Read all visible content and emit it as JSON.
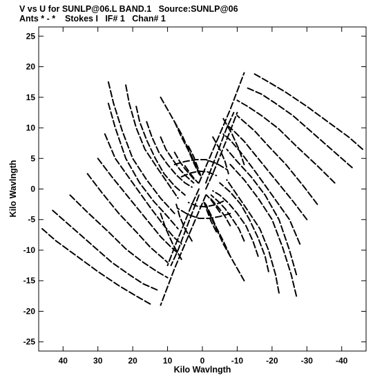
{
  "header": {
    "line1": "V vs U for SUNLP@06.L BAND.1   Source:SUNLP@06",
    "line2": "Ants * - *    Stokes I   IF# 1   Chan# 1"
  },
  "chart_data": {
    "type": "scatter",
    "title": "V vs U for SUNLP@06.L BAND.1   Source:SUNLP@06",
    "subtitle": "Ants * - *    Stokes I   IF# 1   Chan# 1",
    "xlabel": "Kilo Wavlngth",
    "ylabel": "Kilo Wavlngth",
    "xlim": [
      47,
      -47
    ],
    "ylim": [
      -26.5,
      26.5
    ],
    "x_reversed": true,
    "x_ticks": [
      40,
      30,
      20,
      10,
      0,
      -10,
      -20,
      -30,
      -40
    ],
    "x_tick_labels": [
      "40",
      "30",
      "20",
      "10",
      "0",
      "-10",
      "-20",
      "-30",
      "-40"
    ],
    "y_ticks": [
      25,
      20,
      15,
      10,
      5,
      0,
      -5,
      -10,
      -15,
      -20,
      -25
    ],
    "y_tick_labels": [
      "25",
      "20",
      "15",
      "10",
      "5",
      "0",
      "-5",
      "-10",
      "-15",
      "-20",
      "-25"
    ],
    "grid": false,
    "legend": "none",
    "mark_color": "#000000",
    "description": "uv-coverage tracks; each track has a point-symmetric mirror image",
    "tracks": [
      {
        "points": [
          [
            46,
            -6.5
          ],
          [
            42,
            -8.5
          ],
          [
            36,
            -11
          ],
          [
            30,
            -13.5
          ],
          [
            24,
            -15.8
          ],
          [
            19,
            -17.5
          ],
          [
            15,
            -18.8
          ]
        ]
      },
      {
        "points": [
          [
            43,
            -3.5
          ],
          [
            38,
            -6
          ],
          [
            32,
            -9
          ],
          [
            26,
            -12
          ],
          [
            21,
            -14
          ],
          [
            17,
            -15.5
          ],
          [
            13,
            -16.5
          ]
        ]
      },
      {
        "points": [
          [
            38,
            -1
          ],
          [
            33,
            -3.8
          ],
          [
            27,
            -7
          ],
          [
            22,
            -9.8
          ],
          [
            17,
            -12
          ],
          [
            13,
            -13.5
          ],
          [
            10,
            -14.5
          ]
        ]
      },
      {
        "points": [
          [
            33,
            2.5
          ],
          [
            29,
            -0.5
          ],
          [
            24,
            -4
          ],
          [
            19,
            -7
          ],
          [
            15,
            -9.5
          ],
          [
            12,
            -11
          ],
          [
            10,
            -12
          ]
        ]
      },
      {
        "points": [
          [
            30,
            5
          ],
          [
            26,
            2
          ],
          [
            21,
            -1.5
          ],
          [
            16,
            -5
          ],
          [
            12,
            -7.8
          ],
          [
            9,
            -9.5
          ],
          [
            7,
            -10.5
          ]
        ]
      },
      {
        "points": [
          [
            28,
            9
          ],
          [
            25,
            5
          ],
          [
            20,
            1
          ],
          [
            15,
            -3
          ],
          [
            11,
            -6
          ],
          [
            8,
            -8
          ],
          [
            6,
            -9
          ]
        ]
      },
      {
        "points": [
          [
            27,
            14
          ],
          [
            25,
            10
          ],
          [
            22,
            5
          ],
          [
            18,
            1
          ],
          [
            14,
            -2
          ],
          [
            10,
            -4.5
          ],
          [
            7,
            -6.5
          ]
        ]
      },
      {
        "points": [
          [
            27,
            17.5
          ],
          [
            25.5,
            14
          ],
          [
            23,
            9.5
          ],
          [
            20,
            5
          ],
          [
            16,
            1.5
          ],
          [
            12,
            -1.5
          ],
          [
            8,
            -4
          ]
        ]
      },
      {
        "points": [
          [
            22,
            17
          ],
          [
            21,
            14
          ],
          [
            19,
            10
          ],
          [
            16.5,
            6.5
          ],
          [
            13,
            3.5
          ],
          [
            10,
            1
          ],
          [
            7,
            -1.5
          ]
        ]
      },
      {
        "points": [
          [
            19,
            13.5
          ],
          [
            18,
            11
          ],
          [
            16,
            8
          ],
          [
            13.5,
            5
          ],
          [
            11,
            2.5
          ],
          [
            8,
            0.5
          ],
          [
            5,
            -1
          ]
        ]
      },
      {
        "points": [
          [
            16,
            11
          ],
          [
            14.5,
            8.5
          ],
          [
            12.5,
            6
          ],
          [
            10,
            4
          ],
          [
            7.5,
            2.3
          ],
          [
            5,
            1
          ],
          [
            3,
            0.3
          ]
        ]
      },
      {
        "points": [
          [
            12,
            8.5
          ],
          [
            10.5,
            6.5
          ],
          [
            8.5,
            4.8
          ],
          [
            6.5,
            3.2
          ],
          [
            4.5,
            2
          ],
          [
            2.5,
            1
          ]
        ]
      },
      {
        "points": [
          [
            8,
            6
          ],
          [
            6.5,
            4.5
          ],
          [
            5,
            3.3
          ],
          [
            3.5,
            2.3
          ],
          [
            2,
            1.3
          ]
        ]
      },
      {
        "points": [
          [
            5,
            3.8
          ],
          [
            3.8,
            2.8
          ],
          [
            2.5,
            1.8
          ],
          [
            1.2,
            1
          ]
        ]
      },
      {
        "points": [
          [
            12,
            15
          ],
          [
            9,
            12
          ],
          [
            6,
            9
          ],
          [
            4,
            6.5
          ],
          [
            2,
            4
          ],
          [
            0.5,
            2
          ]
        ]
      },
      {
        "points": [
          [
            8,
            11
          ],
          [
            6,
            8.5
          ],
          [
            4,
            6.3
          ],
          [
            2.5,
            4.3
          ],
          [
            1,
            2.5
          ]
        ]
      },
      {
        "points": [
          [
            4,
            7
          ],
          [
            2.5,
            5.3
          ],
          [
            1.5,
            3.8
          ],
          [
            0.5,
            2.2
          ]
        ]
      },
      {
        "points": [
          [
            -3,
            8.5
          ],
          [
            -5,
            6.5
          ],
          [
            -6.5,
            4.5
          ],
          [
            -7.5,
            2.5
          ]
        ]
      },
      {
        "points": [
          [
            -6,
            11.5
          ],
          [
            -8.5,
            9
          ],
          [
            -10.5,
            6.5
          ],
          [
            -12,
            4
          ]
        ]
      },
      {
        "points": [
          [
            1,
            1
          ],
          [
            -2,
            5
          ],
          [
            -5,
            9
          ],
          [
            -8,
            13
          ],
          [
            -10,
            16
          ],
          [
            -12,
            19
          ]
        ]
      },
      {
        "points": [
          [
            1,
            -1
          ],
          [
            3,
            -4
          ],
          [
            5,
            -7
          ],
          [
            7,
            -10
          ],
          [
            9,
            -12.5
          ]
        ]
      },
      {
        "points": [
          [
            -1,
            0
          ],
          [
            -3,
            2.5
          ],
          [
            -5.5,
            6
          ],
          [
            -8,
            9.5
          ],
          [
            -10,
            12.5
          ]
        ]
      },
      {
        "points": [
          [
            8,
            4
          ],
          [
            5,
            4.5
          ],
          [
            2,
            4.8
          ],
          [
            -1,
            4.8
          ],
          [
            -4,
            4.2
          ],
          [
            -7,
            3.2
          ]
        ]
      },
      {
        "points": [
          [
            6,
            2
          ],
          [
            3.5,
            2.6
          ],
          [
            1,
            2.9
          ],
          [
            -1.5,
            2.8
          ],
          [
            -4,
            2.2
          ]
        ]
      }
    ]
  }
}
